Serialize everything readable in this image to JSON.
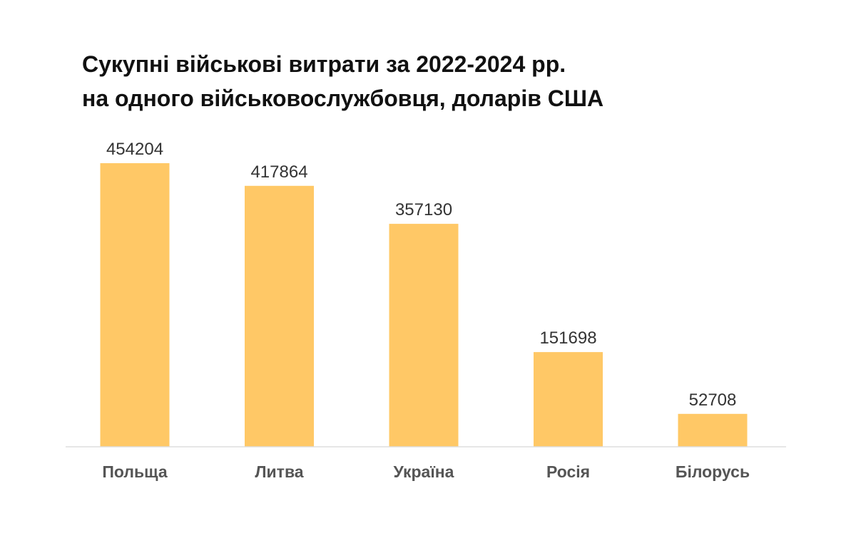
{
  "chart_data": {
    "type": "bar",
    "title_lines": [
      "Сукупні військові витрати за 2022-2024 рр.",
      "на одного військовослужбовця, доларів США"
    ],
    "categories": [
      "Польща",
      "Литва",
      "Україна",
      "Росія",
      "Білорусь"
    ],
    "values": [
      454204,
      417864,
      357130,
      151698,
      52708
    ],
    "data_labels": [
      "454204",
      "417864",
      "357130",
      "151698",
      "52708"
    ],
    "xlabel": "",
    "ylabel": "",
    "ylim": [
      0,
      454204
    ],
    "grid": false,
    "legend": "none"
  },
  "colors": {
    "bar": "#FFC866",
    "baseline": "#DDDDDD",
    "title": "#111111",
    "value_text": "#333333",
    "category_text": "#555555"
  }
}
